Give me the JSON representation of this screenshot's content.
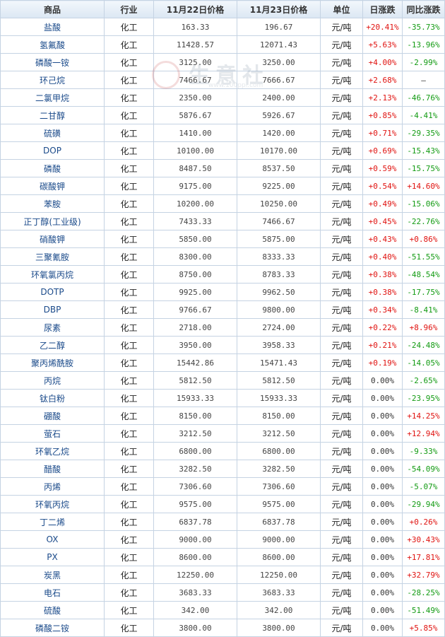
{
  "headers": [
    "商品",
    "行业",
    "11月22日价格",
    "11月23日价格",
    "单位",
    "日涨跌",
    "同比涨跌"
  ],
  "watermark": {
    "text": "生意社",
    "url": "www.100ppi.com"
  },
  "colors": {
    "up": "#e0120f",
    "down": "#139b13",
    "header_bg": "#dbe7f3",
    "border": "#c5d3e3",
    "name": "#1a4a8a"
  },
  "rows": [
    [
      "盐酸",
      "化工",
      "163.33",
      "196.67",
      "元/吨",
      "+20.41%",
      "-35.73%"
    ],
    [
      "氢氟酸",
      "化工",
      "11428.57",
      "12071.43",
      "元/吨",
      "+5.63%",
      "-13.96%"
    ],
    [
      "磷酸一铵",
      "化工",
      "3125.00",
      "3250.00",
      "元/吨",
      "+4.00%",
      "-2.99%"
    ],
    [
      "环己烷",
      "化工",
      "7466.67",
      "7666.67",
      "元/吨",
      "+2.68%",
      "—"
    ],
    [
      "二氯甲烷",
      "化工",
      "2350.00",
      "2400.00",
      "元/吨",
      "+2.13%",
      "-46.76%"
    ],
    [
      "二甘醇",
      "化工",
      "5876.67",
      "5926.67",
      "元/吨",
      "+0.85%",
      "-4.41%"
    ],
    [
      "硫磺",
      "化工",
      "1410.00",
      "1420.00",
      "元/吨",
      "+0.71%",
      "-29.35%"
    ],
    [
      "DOP",
      "化工",
      "10100.00",
      "10170.00",
      "元/吨",
      "+0.69%",
      "-15.43%"
    ],
    [
      "磷酸",
      "化工",
      "8487.50",
      "8537.50",
      "元/吨",
      "+0.59%",
      "-15.75%"
    ],
    [
      "碳酸钾",
      "化工",
      "9175.00",
      "9225.00",
      "元/吨",
      "+0.54%",
      "+14.60%"
    ],
    [
      "苯胺",
      "化工",
      "10200.00",
      "10250.00",
      "元/吨",
      "+0.49%",
      "-15.06%"
    ],
    [
      "正丁醇(工业级)",
      "化工",
      "7433.33",
      "7466.67",
      "元/吨",
      "+0.45%",
      "-22.76%"
    ],
    [
      "硝酸钾",
      "化工",
      "5850.00",
      "5875.00",
      "元/吨",
      "+0.43%",
      "+0.86%"
    ],
    [
      "三聚氰胺",
      "化工",
      "8300.00",
      "8333.33",
      "元/吨",
      "+0.40%",
      "-51.55%"
    ],
    [
      "环氧氯丙烷",
      "化工",
      "8750.00",
      "8783.33",
      "元/吨",
      "+0.38%",
      "-48.54%"
    ],
    [
      "DOTP",
      "化工",
      "9925.00",
      "9962.50",
      "元/吨",
      "+0.38%",
      "-17.75%"
    ],
    [
      "DBP",
      "化工",
      "9766.67",
      "9800.00",
      "元/吨",
      "+0.34%",
      "-8.41%"
    ],
    [
      "尿素",
      "化工",
      "2718.00",
      "2724.00",
      "元/吨",
      "+0.22%",
      "+8.96%"
    ],
    [
      "乙二醇",
      "化工",
      "3950.00",
      "3958.33",
      "元/吨",
      "+0.21%",
      "-24.48%"
    ],
    [
      "聚丙烯酰胺",
      "化工",
      "15442.86",
      "15471.43",
      "元/吨",
      "+0.19%",
      "-14.05%"
    ],
    [
      "丙烷",
      "化工",
      "5812.50",
      "5812.50",
      "元/吨",
      "0.00%",
      "-2.65%"
    ],
    [
      "钛白粉",
      "化工",
      "15933.33",
      "15933.33",
      "元/吨",
      "0.00%",
      "-23.95%"
    ],
    [
      "硼酸",
      "化工",
      "8150.00",
      "8150.00",
      "元/吨",
      "0.00%",
      "+14.25%"
    ],
    [
      "萤石",
      "化工",
      "3212.50",
      "3212.50",
      "元/吨",
      "0.00%",
      "+12.94%"
    ],
    [
      "环氧乙烷",
      "化工",
      "6800.00",
      "6800.00",
      "元/吨",
      "0.00%",
      "-9.33%"
    ],
    [
      "醋酸",
      "化工",
      "3282.50",
      "3282.50",
      "元/吨",
      "0.00%",
      "-54.09%"
    ],
    [
      "丙烯",
      "化工",
      "7306.60",
      "7306.60",
      "元/吨",
      "0.00%",
      "-5.07%"
    ],
    [
      "环氧丙烷",
      "化工",
      "9575.00",
      "9575.00",
      "元/吨",
      "0.00%",
      "-29.94%"
    ],
    [
      "丁二烯",
      "化工",
      "6837.78",
      "6837.78",
      "元/吨",
      "0.00%",
      "+0.26%"
    ],
    [
      "OX",
      "化工",
      "9000.00",
      "9000.00",
      "元/吨",
      "0.00%",
      "+30.43%"
    ],
    [
      "PX",
      "化工",
      "8600.00",
      "8600.00",
      "元/吨",
      "0.00%",
      "+17.81%"
    ],
    [
      "炭黑",
      "化工",
      "12250.00",
      "12250.00",
      "元/吨",
      "0.00%",
      "+32.79%"
    ],
    [
      "电石",
      "化工",
      "3683.33",
      "3683.33",
      "元/吨",
      "0.00%",
      "-28.25%"
    ],
    [
      "硫酸",
      "化工",
      "342.00",
      "342.00",
      "元/吨",
      "0.00%",
      "-51.49%"
    ],
    [
      "磷酸二铵",
      "化工",
      "3800.00",
      "3800.00",
      "元/吨",
      "0.00%",
      "+5.85%"
    ]
  ]
}
